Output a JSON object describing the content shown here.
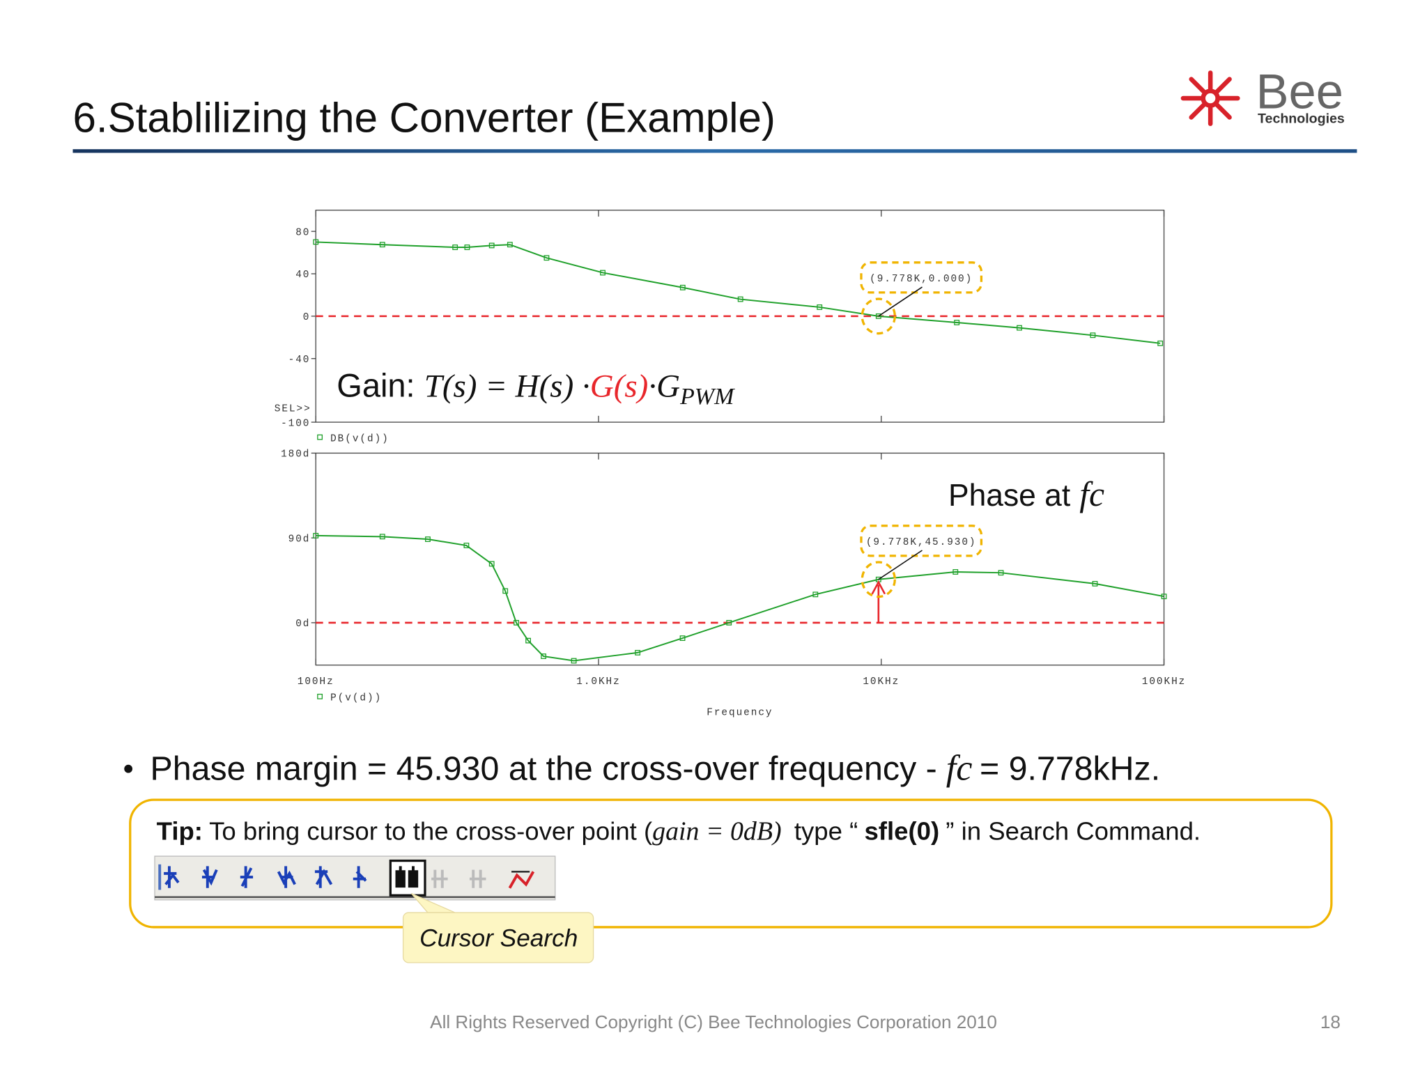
{
  "header": {
    "title": "6.Stablilizing the Converter  (Example)",
    "logo": {
      "name": "Bee",
      "subtitle": "Technologies"
    }
  },
  "chart_data": [
    {
      "type": "line",
      "x": [
        100,
        172,
        311,
        343,
        419,
        486,
        655,
        1035,
        1985,
        3177,
        6050,
        9778,
        18500,
        30800,
        56000,
        97000
      ],
      "series": [
        {
          "name": "DB(v(d))",
          "color": "#1fa02a",
          "values": [
            70,
            67.5,
            65,
            65,
            66.7,
            67.5,
            55,
            41,
            27,
            16,
            8.5,
            0,
            -6,
            -11,
            -18,
            -25.6
          ]
        }
      ],
      "log_x": true,
      "xlim": [
        100,
        100000
      ],
      "ylim": [
        -100,
        100
      ],
      "yticks": [
        -100,
        -40,
        0,
        40,
        80
      ],
      "selection_label": "SEL>>",
      "hline": 0,
      "hline_color": "#e8262b",
      "annotations": [
        {
          "text": "(9.778K,0.000)",
          "x": 9778,
          "y": 0
        }
      ],
      "formula": {
        "label": "Gain:",
        "lhs": "T(s) = H(s) ·",
        "plant": "G(s)",
        "dot": "·G",
        "sub": "PWM"
      }
    },
    {
      "type": "line",
      "x": [
        100,
        172,
        249,
        341,
        419,
        468,
        512,
        564,
        639,
        818,
        1375,
        1982,
        2894,
        5850,
        9778,
        18300,
        26500,
        57000,
        100000
      ],
      "series": [
        {
          "name": "P(v(d))",
          "color": "#1fa02a",
          "values": [
            92.4,
            91.4,
            88.6,
            82,
            62.5,
            33.7,
            0,
            -19,
            -35.6,
            -40.4,
            -31.8,
            -16.4,
            0,
            30,
            45.93,
            53.9,
            53,
            41.4,
            27.9
          ]
        }
      ],
      "log_x": true,
      "xlim": [
        100,
        100000
      ],
      "xticks": [
        {
          "value": 100,
          "label": "100Hz"
        },
        {
          "value": 1000,
          "label": "1.0KHz"
        },
        {
          "value": 10000,
          "label": "10KHz"
        },
        {
          "value": 100000,
          "label": "100KHz"
        }
      ],
      "x_label": "Frequency",
      "ylim": [
        -45,
        180
      ],
      "yticks": [
        {
          "value": 0,
          "label": "0d"
        },
        {
          "value": 90,
          "label": "90d"
        },
        {
          "value": 180,
          "label": "180d"
        }
      ],
      "hline": 0,
      "hline_color": "#e8262b",
      "annotations": [
        {
          "text": "(9.778K,45.930)",
          "x": 9778,
          "y": 45.93,
          "arrow_color": "#e8262b"
        }
      ],
      "note": {
        "text": "Phase at",
        "symbol": "fc"
      }
    }
  ],
  "bullet": {
    "text": "Phase margin = 45.930 at the cross-over frequency -",
    "symbol": "fc",
    "rest": "= 9.778kHz."
  },
  "tip": {
    "label": "Tip:",
    "text": "To bring cursor to the cross-over point (",
    "condition": "gain = 0dB)",
    "pre": "type “",
    "command": "sfle(0)",
    "post": "” in Search Command."
  },
  "callout": "Cursor Search",
  "footer": {
    "copyright": "All Rights Reserved Copyright (C) Bee Technologies Corporation 2010",
    "page": "18"
  }
}
